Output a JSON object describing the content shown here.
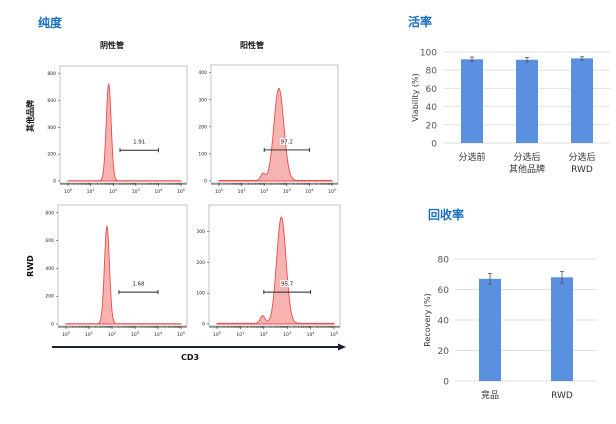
{
  "purity": {
    "title": "纯度",
    "col_headers": [
      "阴性管",
      "阳性管"
    ],
    "row_labels": [
      "其他品牌",
      "RWD"
    ],
    "x_axis_label": "CD3"
  },
  "viability": {
    "title": "活率"
  },
  "recovery": {
    "title": "回收率"
  },
  "chart_data": [
    {
      "type": "histogram",
      "title": "其他品牌 阴性管",
      "x_scale": "log",
      "xlim": [
        0,
        5
      ],
      "x_ticks": [
        "10^0",
        "10^1",
        "10^2",
        "10^3",
        "10^4",
        "10^5"
      ],
      "y_ticks": [
        0,
        200,
        400,
        600,
        800
      ],
      "ylim": [
        0,
        820
      ],
      "peaks": [
        {
          "log_center": 1.8,
          "log_sd": 0.11,
          "count": 720
        }
      ],
      "gate": {
        "from_log": 2.3,
        "to_log": 4.0,
        "label": "1.91"
      }
    },
    {
      "type": "histogram",
      "title": "其他品牌 阳性管",
      "x_scale": "log",
      "xlim": [
        0,
        5
      ],
      "x_ticks": [
        "10^0",
        "10^1",
        "10^2",
        "10^3",
        "10^4",
        "10^5"
      ],
      "y_ticks": [
        0,
        100,
        200,
        300,
        400
      ],
      "ylim": [
        0,
        410
      ],
      "peaks": [
        {
          "log_center": 2.65,
          "log_sd": 0.22,
          "count": 340
        },
        {
          "log_center": 1.95,
          "log_sd": 0.1,
          "count": 25
        }
      ],
      "gate": {
        "from_log": 2.0,
        "to_log": 4.0,
        "label": "97.2"
      }
    },
    {
      "type": "histogram",
      "title": "RWD 阴性管",
      "x_scale": "log",
      "xlim": [
        0,
        5
      ],
      "x_ticks": [
        "10^0",
        "10^1",
        "10^2",
        "10^3",
        "10^4",
        "10^5"
      ],
      "y_ticks": [
        0,
        200,
        400,
        600,
        800
      ],
      "ylim": [
        0,
        820
      ],
      "peaks": [
        {
          "log_center": 1.78,
          "log_sd": 0.11,
          "count": 700
        }
      ],
      "gate": {
        "from_log": 2.3,
        "to_log": 4.0,
        "label": "1.68"
      }
    },
    {
      "type": "histogram",
      "title": "RWD 阳性管",
      "x_scale": "log",
      "xlim": [
        0,
        5
      ],
      "x_ticks": [
        "10^0",
        "10^1",
        "10^2",
        "10^3",
        "10^4",
        "10^5"
      ],
      "y_ticks": [
        0,
        100,
        200,
        300
      ],
      "ylim": [
        0,
        370
      ],
      "peaks": [
        {
          "log_center": 2.75,
          "log_sd": 0.2,
          "count": 345
        },
        {
          "log_center": 1.95,
          "log_sd": 0.1,
          "count": 25
        }
      ],
      "gate": {
        "from_log": 2.0,
        "to_log": 4.0,
        "label": "95.7"
      }
    },
    {
      "type": "bar",
      "title": "活率",
      "categories": [
        [
          "分选前"
        ],
        [
          "分选后",
          "其他品牌"
        ],
        [
          "分选后",
          "RWD"
        ]
      ],
      "values": [
        92,
        91.5,
        93
      ],
      "errors": [
        2.5,
        2.5,
        1.8
      ],
      "ylabel": "Viability (%)",
      "ylim": [
        0,
        100
      ],
      "y_ticks": [
        0,
        20,
        40,
        60,
        80,
        100
      ],
      "color": "#5b8fe0"
    },
    {
      "type": "bar",
      "title": "回收率",
      "categories": [
        [
          "竞品"
        ],
        [
          "RWD"
        ]
      ],
      "values": [
        67,
        68
      ],
      "errors": [
        3.5,
        3.8
      ],
      "ylabel": "Recovery (%)",
      "ylim": [
        0,
        80
      ],
      "y_ticks": [
        0,
        20,
        40,
        60,
        80
      ],
      "color": "#5b8fe0"
    }
  ]
}
